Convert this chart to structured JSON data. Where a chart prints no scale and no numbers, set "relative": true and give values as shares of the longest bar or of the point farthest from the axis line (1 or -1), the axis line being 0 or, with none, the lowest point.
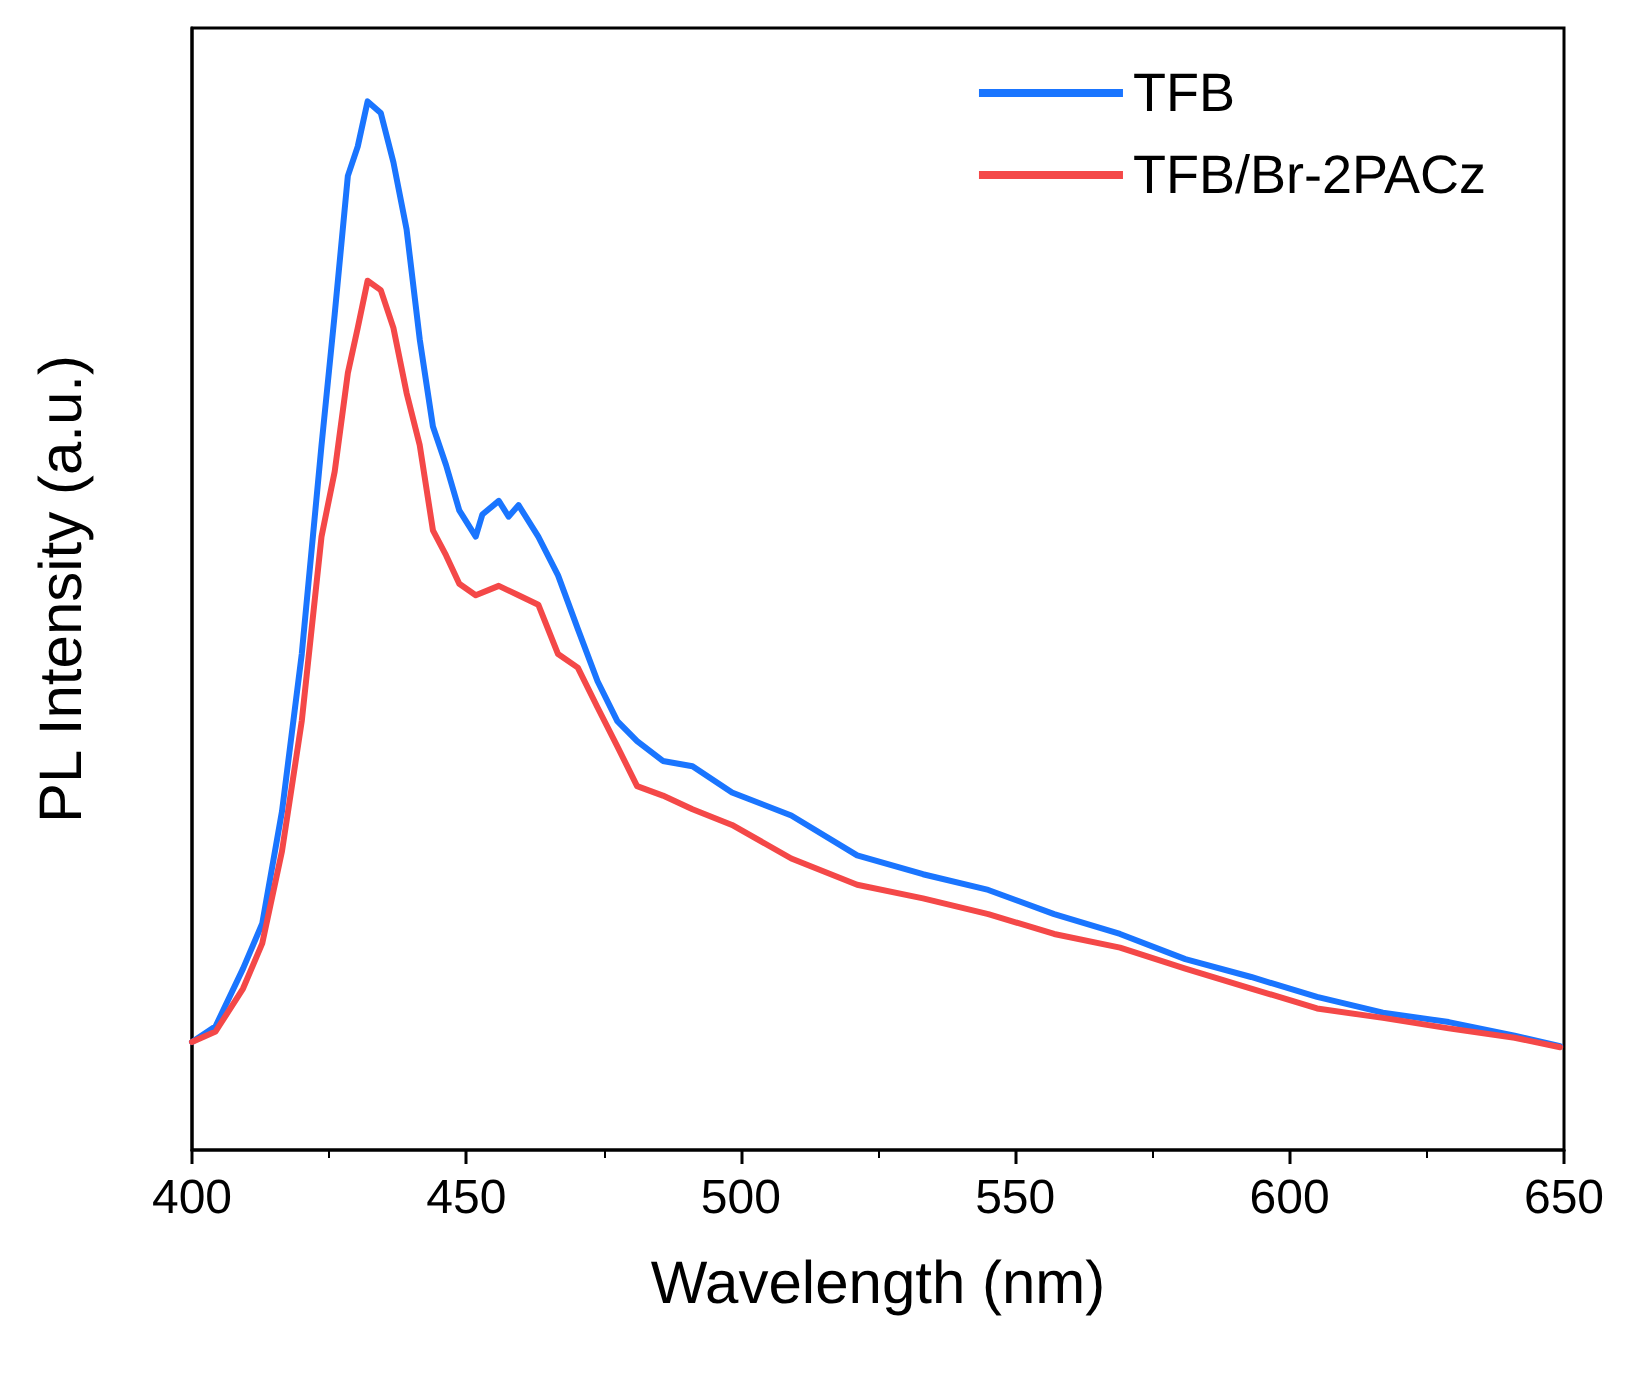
{
  "chart_data": {
    "type": "line",
    "xlabel": "Wavelength (nm)",
    "ylabel": "PL Intensity (a.u.)",
    "relative": true,
    "xlim": [
      400,
      650
    ],
    "xticks": [
      400,
      450,
      500,
      550,
      600,
      650
    ],
    "legend": "top right",
    "grid": false,
    "marker": "none",
    "line_style": "solid",
    "series": [
      {
        "name": "TFB",
        "color": "#1a75ff",
        "x": [
          400,
          404.3,
          409.3,
          412.8,
          416.4,
          420,
          423.6,
          426,
          428.4,
          430.2,
          432,
          434.4,
          436.7,
          439.1,
          441.5,
          443.9,
          446.3,
          448.7,
          451.7,
          452.9,
          455.9,
          457.7,
          459.5,
          463.1,
          466.7,
          470.3,
          473.9,
          477.5,
          481.1,
          485.8,
          491.2,
          498.4,
          509.2,
          521.2,
          533.2,
          545.1,
          557.1,
          569.1,
          581,
          593,
          605,
          617,
          629,
          641,
          649.3
        ],
        "values": [
          0.103,
          0.118,
          0.173,
          0.216,
          0.323,
          0.473,
          0.672,
          0.797,
          0.929,
          0.957,
          1.0,
          0.989,
          0.942,
          0.878,
          0.773,
          0.69,
          0.653,
          0.61,
          0.585,
          0.606,
          0.619,
          0.604,
          0.615,
          0.585,
          0.548,
          0.497,
          0.447,
          0.409,
          0.39,
          0.371,
          0.366,
          0.341,
          0.319,
          0.281,
          0.263,
          0.248,
          0.225,
          0.206,
          0.182,
          0.165,
          0.146,
          0.131,
          0.122,
          0.109,
          0.099
        ]
      },
      {
        "name": "TFB/Br-2PACz",
        "color": "#f44848",
        "x": [
          400,
          404.3,
          409.3,
          412.8,
          416.4,
          420,
          423.6,
          426,
          428.4,
          430.2,
          432,
          434.4,
          436.7,
          439.1,
          441.5,
          443.9,
          446.3,
          448.7,
          451.7,
          455.9,
          459.5,
          463.1,
          466.7,
          470.3,
          473.9,
          477.5,
          481.1,
          485.8,
          491.2,
          498.4,
          509.2,
          521.2,
          533.2,
          545.1,
          557.1,
          569.1,
          581,
          593,
          605,
          617,
          629,
          641,
          649.3
        ],
        "values": [
          0.103,
          0.113,
          0.154,
          0.197,
          0.285,
          0.409,
          0.585,
          0.647,
          0.741,
          0.784,
          0.829,
          0.82,
          0.784,
          0.722,
          0.672,
          0.591,
          0.567,
          0.54,
          0.529,
          0.538,
          0.529,
          0.52,
          0.473,
          0.46,
          0.422,
          0.385,
          0.347,
          0.338,
          0.325,
          0.31,
          0.278,
          0.253,
          0.24,
          0.225,
          0.206,
          0.193,
          0.173,
          0.154,
          0.135,
          0.126,
          0.116,
          0.107,
          0.098
        ]
      }
    ]
  }
}
